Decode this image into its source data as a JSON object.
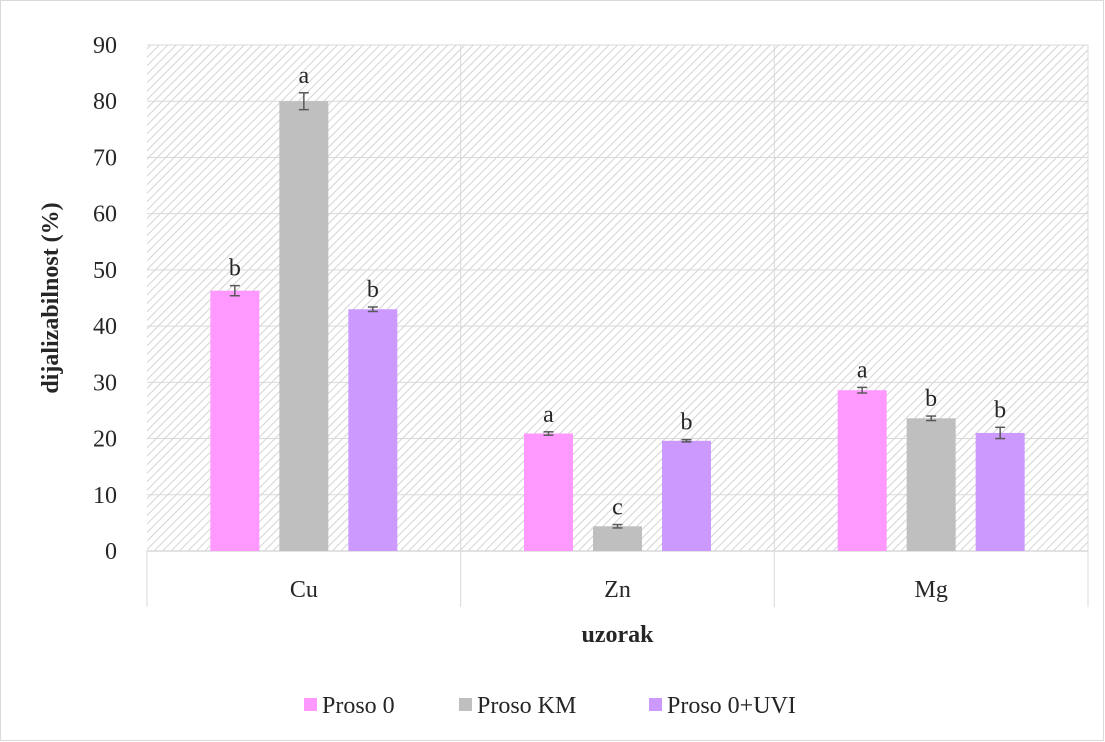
{
  "chart_data": {
    "type": "bar",
    "title": "",
    "xlabel": "uzorak",
    "ylabel": "dijalizabilnost (%)",
    "ylim": [
      0,
      90
    ],
    "yticks": [
      "0",
      "10",
      "20",
      "30",
      "40",
      "50",
      "60",
      "70",
      "80",
      "90"
    ],
    "categories": [
      "Cu",
      "Zn",
      "Mg"
    ],
    "grid": true,
    "legend_position": "bottom",
    "series": [
      {
        "name": "Proso 0",
        "color": "#ff99ff",
        "values": [
          46.3,
          20.9,
          28.6
        ],
        "errors": [
          0.9,
          0.3,
          0.5
        ],
        "significance": [
          "b",
          "a",
          "a"
        ]
      },
      {
        "name": "Proso KM",
        "color": "#bfbfbf",
        "values": [
          80.0,
          4.4,
          23.6
        ],
        "errors": [
          1.5,
          0.3,
          0.4
        ],
        "significance": [
          "a",
          "c",
          "b"
        ]
      },
      {
        "name": "Proso 0+UVI",
        "color": "#cc99ff",
        "values": [
          43.0,
          19.6,
          21.0
        ],
        "errors": [
          0.4,
          0.2,
          1.0
        ],
        "significance": [
          "b",
          "b",
          "b"
        ]
      }
    ]
  }
}
